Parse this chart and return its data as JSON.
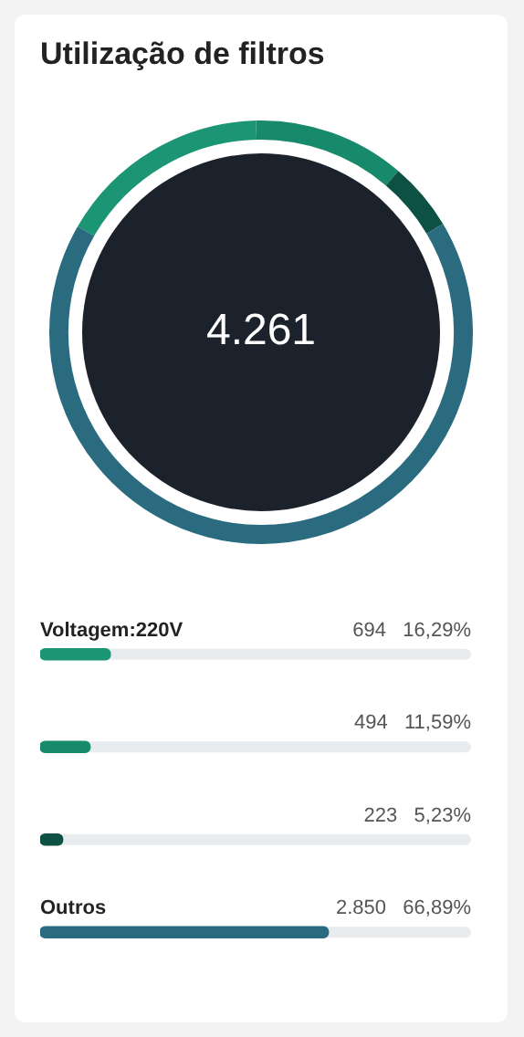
{
  "chart_data": [
    {
      "type": "donut",
      "title": "Utilização de filtros",
      "categories": [
        null,
        null,
        null,
        null
      ],
      "values": [
        16.29,
        11.59,
        5.23,
        66.89
      ],
      "colors": [
        "#1b9573",
        "#168a6b",
        "#0d5044",
        "#2a6b7f"
      ],
      "annotations": [
        "4.261"
      ]
    },
    {
      "type": "bar",
      "orientation": "horizontal",
      "categories": [
        "Voltagem:220V",
        null,
        null,
        "Outros"
      ],
      "values": [
        16.29,
        11.59,
        5.23,
        66.89
      ],
      "value_labels": [
        "694  16,29%",
        "494  11,59%",
        "223  5,23%",
        "2.850  66,89%"
      ],
      "colors": [
        "#1b9573",
        "#168a6b",
        "#0d5044",
        "#2a6b7f"
      ],
      "xlim": [
        0,
        100
      ],
      "tick_labels": false
    }
  ]
}
